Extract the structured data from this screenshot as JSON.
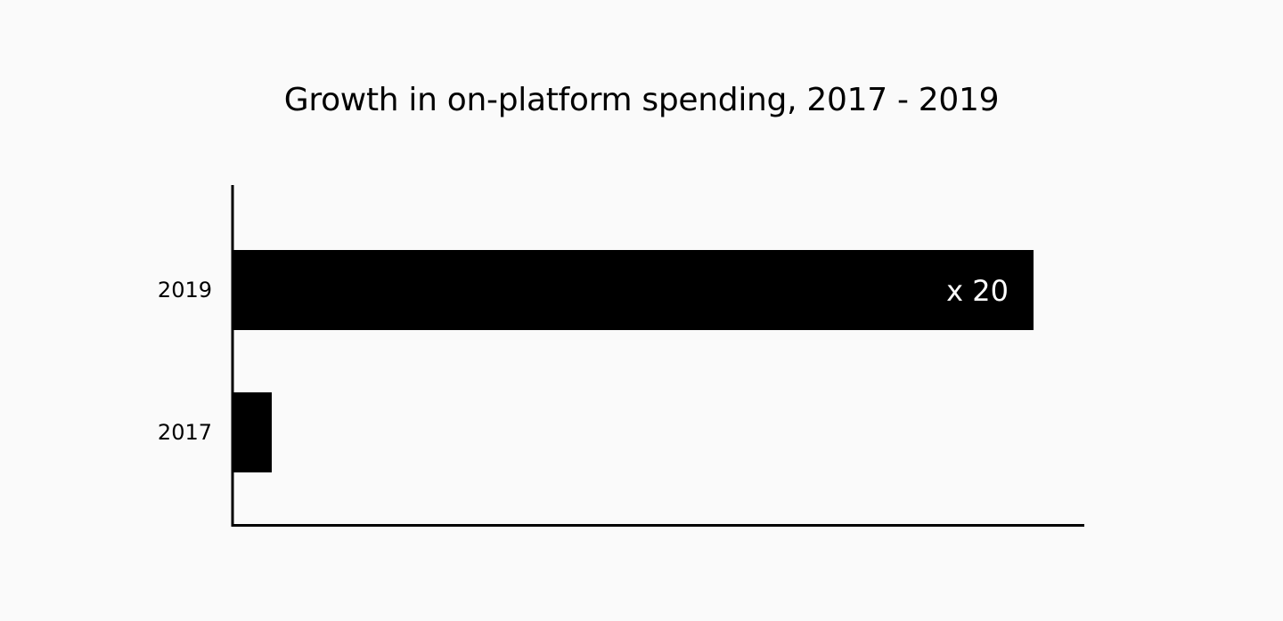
{
  "chart_data": {
    "type": "bar",
    "orientation": "horizontal",
    "title": "Growth in on-platform spending, 2017 - 2019",
    "categories": [
      "2019",
      "2017"
    ],
    "values": [
      20,
      1
    ],
    "data_labels": [
      "x 20",
      ""
    ],
    "xlabel": "",
    "ylabel": "",
    "xlim": [
      0,
      21.2
    ],
    "grid": false,
    "legend": "none",
    "bar_color": "#000000",
    "label_color": "#ffffff",
    "background_color": "#fafafa"
  }
}
